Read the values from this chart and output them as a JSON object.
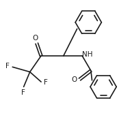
{
  "bg_color": "#ffffff",
  "line_color": "#1a1a1a",
  "line_width": 1.2,
  "font_size": 7.0,
  "figsize": [
    1.93,
    1.82
  ],
  "dpi": 100,
  "xlim": [
    0,
    10
  ],
  "ylim": [
    0,
    10
  ]
}
